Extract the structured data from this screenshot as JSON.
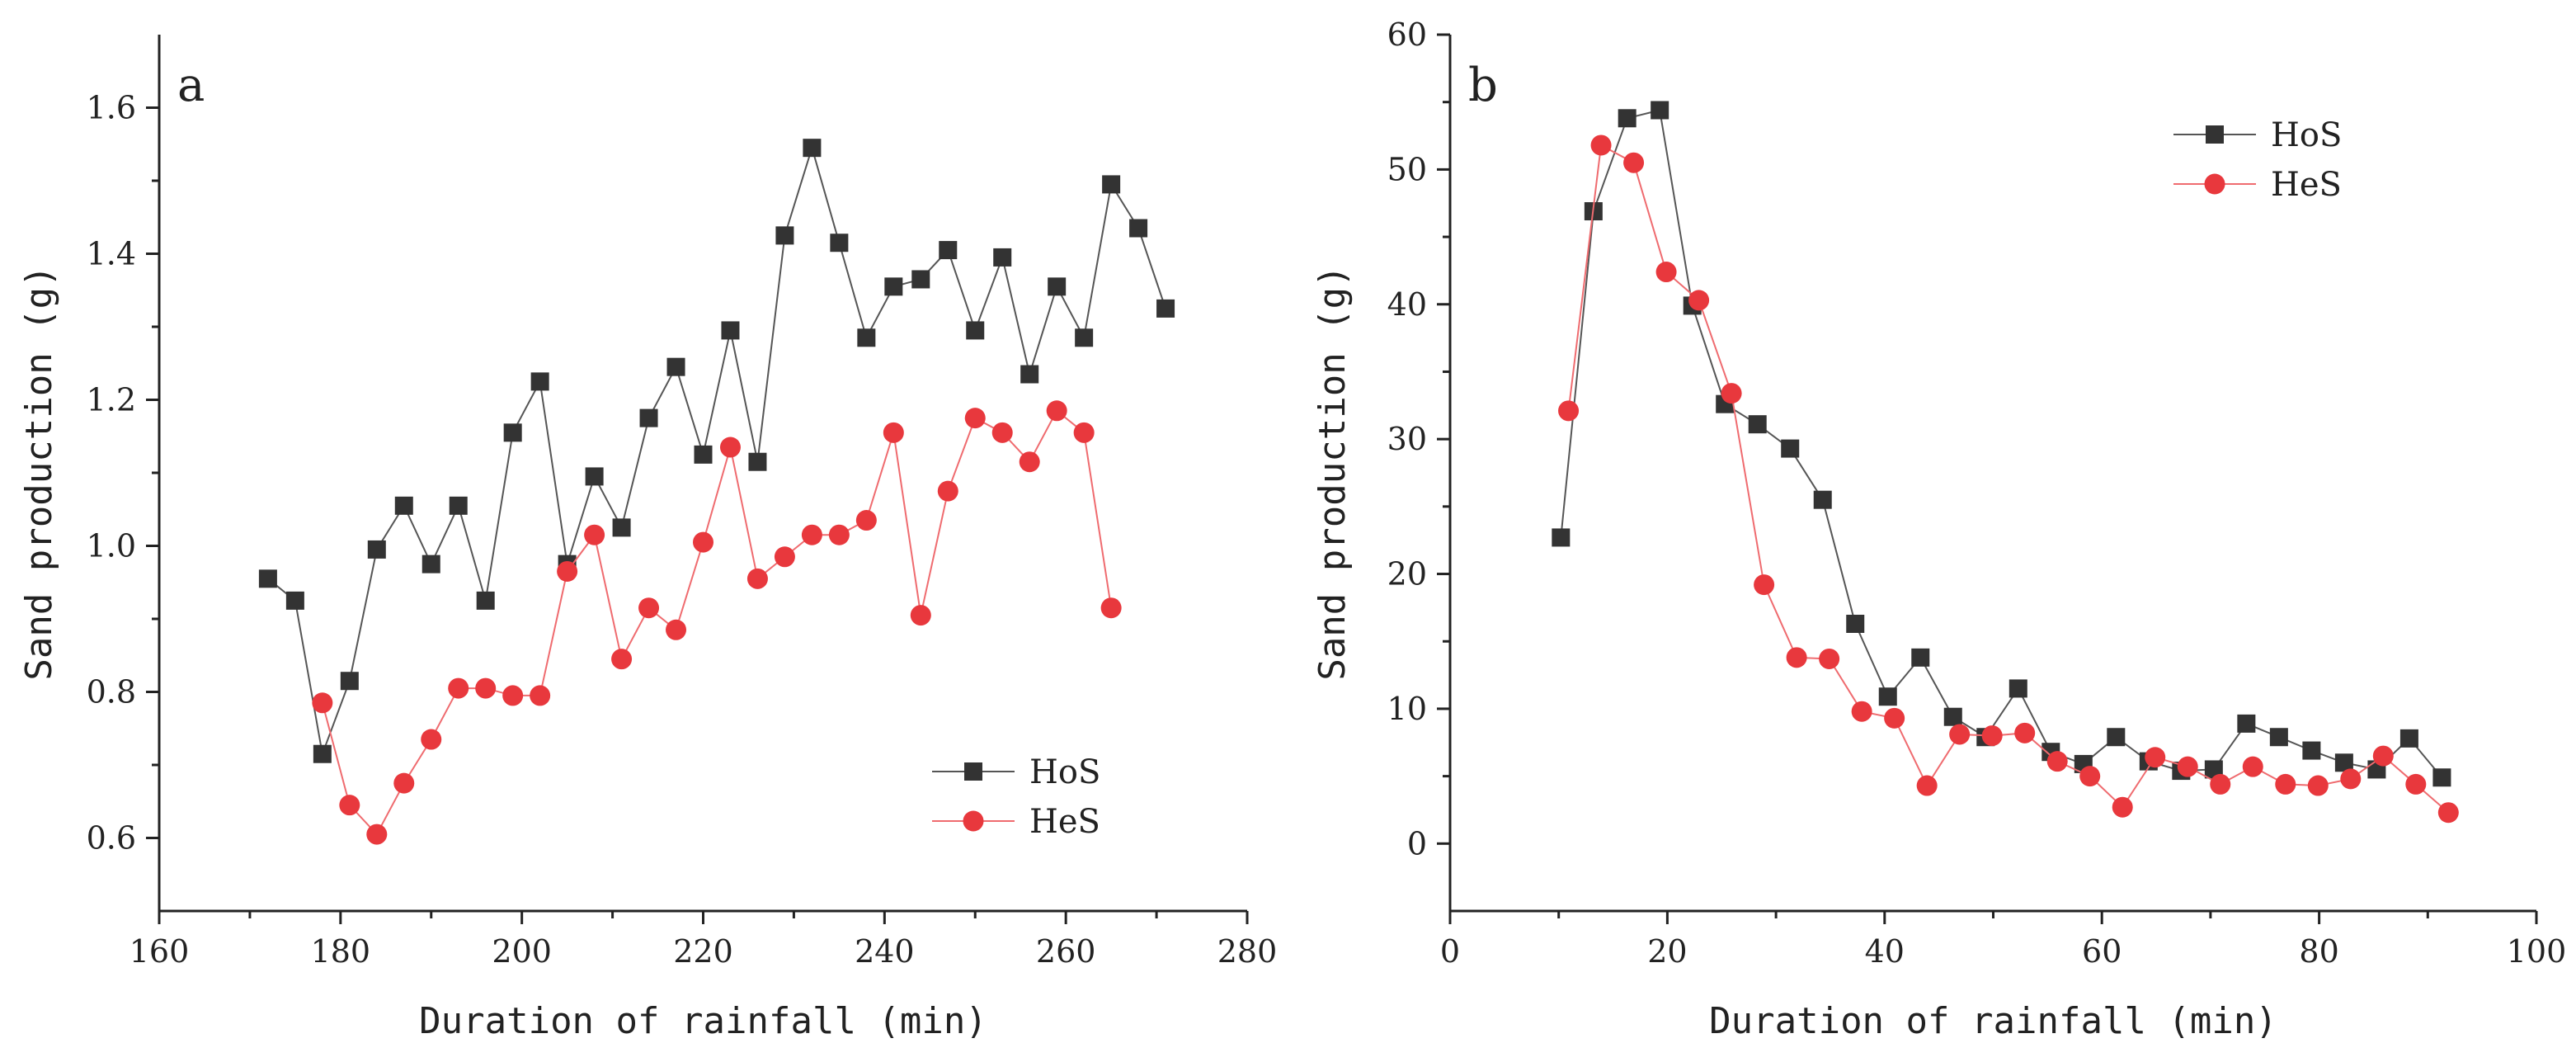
{
  "chart_data": [
    {
      "type": "line",
      "panel_label": "a",
      "xlabel": "Duration of rainfall (min)",
      "ylabel": "Sand production (g)",
      "xlim": [
        160,
        280
      ],
      "ylim": [
        0.5,
        1.7
      ],
      "xticks": [
        160,
        180,
        200,
        220,
        240,
        260,
        280
      ],
      "yticks": [
        0.6,
        0.8,
        1.0,
        1.2,
        1.4,
        1.6
      ],
      "ytick_labels": [
        "0.6",
        "0.8",
        "1.0",
        "1.2",
        "1.4",
        "1.6"
      ],
      "legend_position": "bottom-right",
      "series": [
        {
          "name": "HoS",
          "color": "#333333",
          "marker": "square",
          "x": [
            172,
            175,
            178,
            181,
            184,
            187,
            190,
            193,
            196,
            199,
            202,
            205,
            208,
            211,
            214,
            217,
            220,
            223,
            226,
            229,
            232,
            235,
            238,
            241,
            244,
            247,
            250,
            253,
            256,
            259,
            262,
            265,
            268,
            271
          ],
          "y": [
            0.955,
            0.925,
            0.715,
            0.815,
            0.995,
            1.055,
            0.975,
            1.055,
            0.925,
            1.155,
            1.225,
            0.975,
            1.095,
            1.025,
            1.175,
            1.245,
            1.125,
            1.295,
            1.115,
            1.425,
            1.545,
            1.415,
            1.285,
            1.355,
            1.365,
            1.405,
            1.295,
            1.395,
            1.235,
            1.355,
            1.285,
            1.495,
            1.435,
            1.325
          ]
        },
        {
          "name": "HeS",
          "color": "#e8383d",
          "marker": "circle",
          "x": [
            178,
            181,
            184,
            187,
            190,
            193,
            196,
            199,
            202,
            205,
            208,
            211,
            214,
            217,
            220,
            223,
            226,
            229,
            232,
            235,
            238,
            241,
            244,
            247,
            250,
            253,
            256,
            259,
            262,
            265
          ],
          "y": [
            0.785,
            0.645,
            0.605,
            0.675,
            0.735,
            0.805,
            0.805,
            0.795,
            0.795,
            0.965,
            1.015,
            0.845,
            0.915,
            0.885,
            1.005,
            1.135,
            0.955,
            0.985,
            1.015,
            1.015,
            1.035,
            1.155,
            0.905,
            1.075,
            1.175,
            1.155,
            1.115,
            1.185,
            1.155,
            0.915
          ]
        }
      ]
    },
    {
      "type": "line",
      "panel_label": "b",
      "xlabel": "Duration of rainfall (min)",
      "ylabel": "Sand production (g)",
      "xlim": [
        0,
        100
      ],
      "ylim": [
        -5,
        60
      ],
      "xticks": [
        0,
        20,
        40,
        60,
        80,
        100
      ],
      "yticks": [
        0,
        10,
        20,
        30,
        40,
        50,
        60
      ],
      "ytick_labels": [
        "0",
        "10",
        "20",
        "30",
        "40",
        "50",
        "60"
      ],
      "legend_position": "top-right",
      "series": [
        {
          "name": "HoS",
          "color": "#333333",
          "marker": "square",
          "x": [
            10.2,
            13.2,
            16.3,
            19.3,
            22.3,
            25.3,
            28.3,
            31.3,
            34.3,
            37.3,
            40.3,
            43.3,
            46.3,
            49.3,
            52.3,
            55.3,
            58.3,
            61.3,
            64.3,
            67.3,
            70.3,
            73.3,
            76.3,
            79.3,
            82.3,
            85.3,
            88.3,
            91.3
          ],
          "y": [
            22.7,
            46.9,
            53.8,
            54.4,
            39.9,
            32.6,
            31.1,
            29.3,
            25.5,
            16.3,
            10.9,
            13.8,
            9.4,
            7.9,
            11.5,
            6.8,
            5.9,
            7.9,
            6.1,
            5.4,
            5.5,
            8.9,
            7.9,
            6.9,
            6.0,
            5.5,
            7.8,
            4.9
          ]
        },
        {
          "name": "HeS",
          "color": "#e8383d",
          "marker": "circle",
          "x": [
            10.9,
            13.9,
            16.9,
            19.9,
            22.9,
            25.9,
            28.9,
            31.9,
            34.9,
            37.9,
            40.9,
            43.9,
            46.9,
            49.9,
            52.9,
            55.9,
            58.9,
            61.9,
            64.9,
            67.9,
            70.9,
            73.9,
            76.9,
            79.9,
            82.9,
            85.9,
            88.9,
            91.9
          ],
          "y": [
            32.1,
            51.8,
            50.5,
            42.4,
            40.3,
            33.4,
            19.2,
            13.8,
            13.7,
            9.8,
            9.3,
            4.3,
            8.1,
            8.0,
            8.2,
            6.1,
            5.0,
            2.7,
            6.4,
            5.7,
            4.4,
            5.7,
            4.4,
            4.3,
            4.8,
            6.5,
            4.4,
            2.3
          ]
        }
      ]
    }
  ]
}
